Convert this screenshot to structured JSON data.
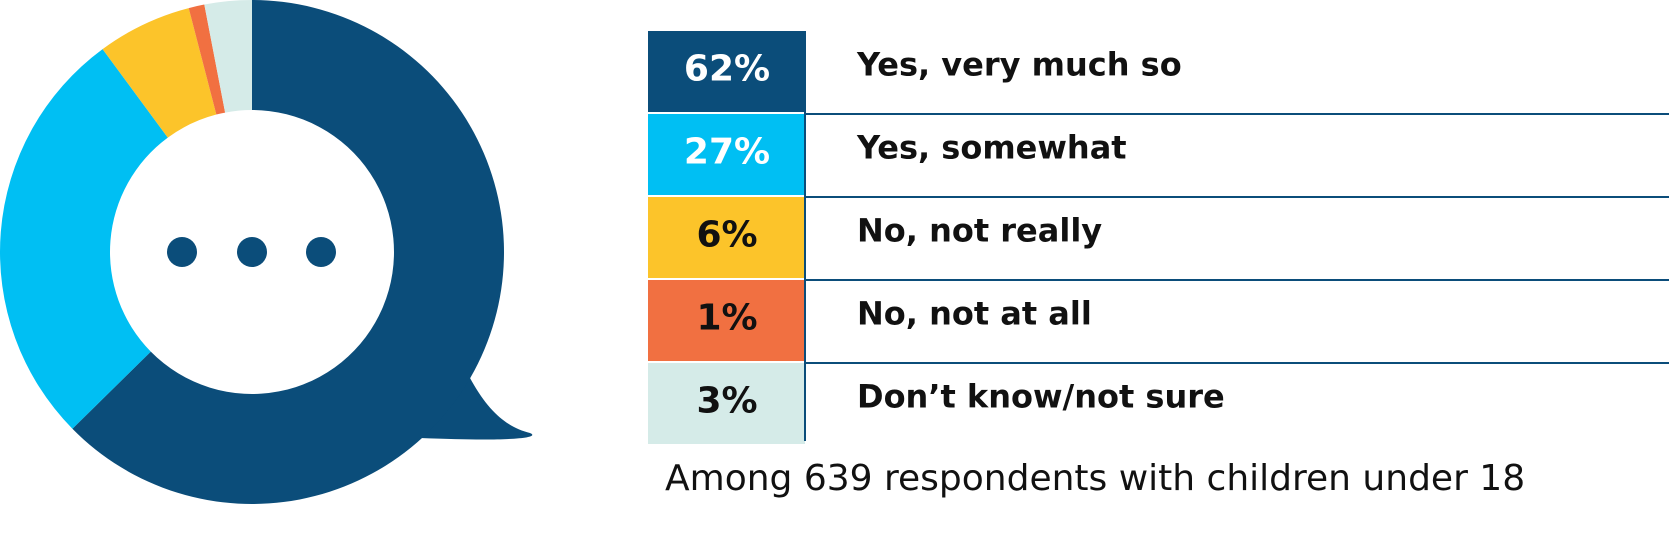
{
  "chart_data": {
    "type": "pie",
    "categories": [
      "Yes, very much so",
      "Yes, somewhat",
      "No, not really",
      "No, not at all",
      "Don’t know/not sure"
    ],
    "values": [
      62,
      27,
      6,
      1,
      3
    ],
    "value_labels": [
      "62%",
      "27%",
      "6%",
      "1%",
      "3%"
    ],
    "colors": [
      "#0b4d7a",
      "#00bff3",
      "#fcc42a",
      "#f17041",
      "#d5ebe8"
    ],
    "note": "Among 639 respondents with children under 18"
  }
}
